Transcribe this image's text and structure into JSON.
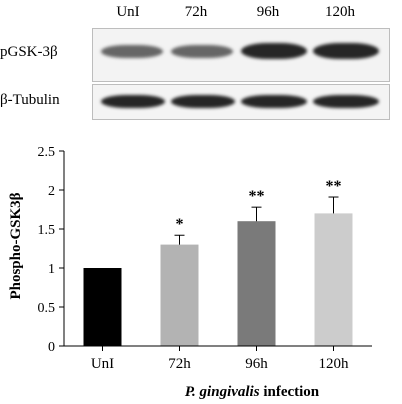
{
  "blot": {
    "lanes": [
      "UnI",
      "72h",
      "96h",
      "120h"
    ],
    "rows": [
      {
        "label": "pGSK-3β",
        "band_intensity": [
          0.6,
          0.6,
          0.85,
          0.85
        ]
      },
      {
        "label": "β-Tubulin",
        "band_intensity": [
          0.85,
          0.85,
          0.85,
          0.85
        ]
      }
    ]
  },
  "chart_data": {
    "type": "bar",
    "title": "",
    "ylabel": "Phospho-GSK3β",
    "xlabel_italic": "P. gingivalis",
    "xlabel_rest": " infection",
    "categories": [
      "UnI",
      "72h",
      "96h",
      "120h"
    ],
    "values": [
      1.0,
      1.3,
      1.6,
      1.7
    ],
    "errors": [
      0,
      0.12,
      0.18,
      0.21
    ],
    "significance": [
      "",
      "*",
      "**",
      "**"
    ],
    "bar_colors": [
      "#000000",
      "#b3b3b3",
      "#7a7a7a",
      "#cccccc"
    ],
    "ylim": [
      0,
      2.5
    ],
    "yticks": [
      0,
      0.5,
      1,
      1.5,
      2,
      2.5
    ],
    "ytick_labels": [
      "0",
      "0.5",
      "1",
      "1.5",
      "2",
      "2.5"
    ],
    "grid": false,
    "legend": "none"
  }
}
